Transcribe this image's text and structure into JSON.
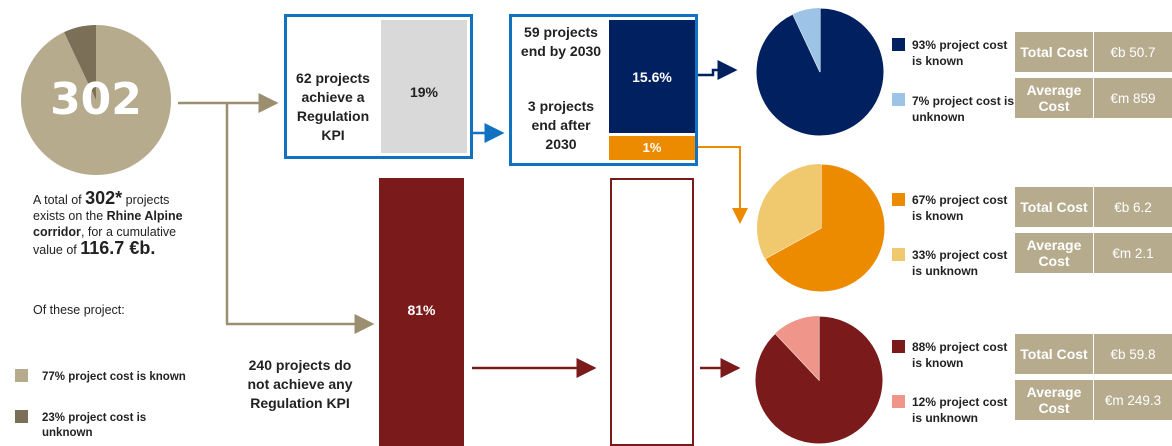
{
  "summary": {
    "total_projects": "302",
    "text_prefix": "A total of ",
    "text_count": "302*",
    "text_mid": " projects exists on the ",
    "text_corridor": "Rhine Alpine corridor",
    "text_after": ", for a cumulative value of ",
    "text_value": "116.7 €b.",
    "of_these": "Of these project:",
    "legend": [
      {
        "label": "77% project cost is known",
        "color": "#b7ab8e"
      },
      {
        "label": "23% project cost is unknown",
        "color": "#7b6f57"
      }
    ],
    "pie": {
      "known_pct": 77,
      "unknown_pct": 23
    }
  },
  "kpi_box": {
    "label": "62 projects achieve a Regulation KPI",
    "pct": "19%"
  },
  "end_box": {
    "by2030_label": "59 projects end by 2030",
    "by2030_pct": "15.6%",
    "after2030_label": "3 projects end after 2030",
    "after2030_pct": "1%"
  },
  "no_kpi": {
    "label": "240 projects do not achieve any Regulation KPI",
    "pct": "81%"
  },
  "groups": [
    {
      "pie": {
        "known_pct": 93,
        "known_color": "#002060",
        "unknown_color": "#9dc3e6"
      },
      "known_label": "93% project cost is known",
      "unknown_label": "7% project cost is unknown",
      "total_label": "Total Cost",
      "total_value": "€b 50.7",
      "avg_label": "Average Cost",
      "avg_value": "€m 859"
    },
    {
      "pie": {
        "known_pct": 67,
        "known_color": "#ed8b00",
        "unknown_color": "#f0c96e"
      },
      "known_label": "67% project cost is known",
      "unknown_label": "33% project cost is unknown",
      "total_label": "Total Cost",
      "total_value": "€b 6.2",
      "avg_label": "Average Cost",
      "avg_value": "€m 2.1"
    },
    {
      "pie": {
        "known_pct": 88,
        "known_color": "#7b1a1a",
        "unknown_color": "#f0958a"
      },
      "known_label": "88% project cost is known",
      "unknown_label": "12% project cost is unknown",
      "total_label": "Total Cost",
      "total_value": "€b 59.8",
      "avg_label": "Average Cost",
      "avg_value": "€m 249.3"
    }
  ],
  "colors": {
    "blue_border": "#1072c0",
    "tan": "#b7ab8e",
    "dark_tan": "#7b6f57",
    "maroon": "#7b1a1a"
  }
}
